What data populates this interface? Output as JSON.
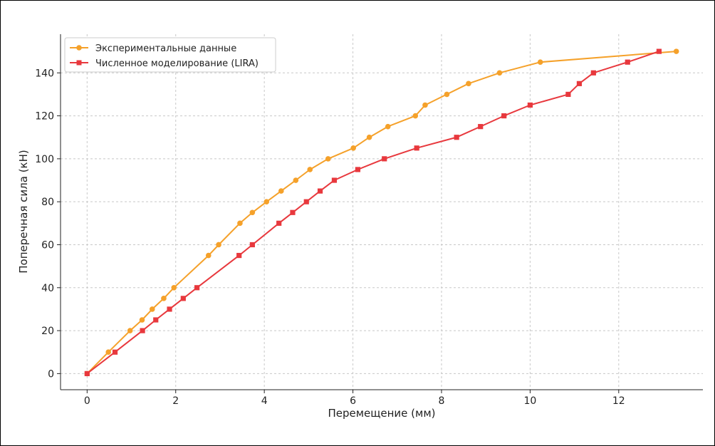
{
  "chart_data": {
    "type": "line",
    "title": "",
    "xlabel": "Перемещение (мм)",
    "ylabel": "Поперечная сила (кН)",
    "xlim": [
      -0.6,
      13.9
    ],
    "ylim": [
      -7.5,
      158
    ],
    "xticks": [
      0,
      2,
      4,
      6,
      8,
      10,
      12
    ],
    "yticks": [
      0,
      20,
      40,
      60,
      80,
      100,
      120,
      140
    ],
    "grid": true,
    "legend_position": "top-left",
    "series": [
      {
        "name": "Экспериментальные данные",
        "color": "#f5a12a",
        "marker": "circle",
        "x": [
          0,
          0.48,
          0.97,
          1.24,
          1.47,
          1.73,
          1.96,
          2.74,
          2.97,
          3.45,
          3.73,
          4.05,
          4.38,
          4.71,
          5.03,
          5.44,
          6.01,
          6.37,
          6.79,
          7.41,
          7.63,
          8.12,
          8.61,
          9.31,
          10.23,
          13.3
        ],
        "y": [
          0,
          10,
          20,
          25,
          30,
          35,
          40,
          55,
          60,
          70,
          75,
          80,
          85,
          90,
          95,
          100,
          105,
          110,
          115,
          120,
          125,
          130,
          135,
          140,
          145,
          150
        ]
      },
      {
        "name": "Численное моделирование (LIRA)",
        "color": "#e8383d",
        "marker": "square",
        "x": [
          0,
          0.63,
          1.25,
          1.55,
          1.86,
          2.17,
          2.48,
          3.43,
          3.73,
          4.33,
          4.64,
          4.95,
          5.26,
          5.58,
          6.11,
          6.71,
          7.44,
          8.34,
          8.88,
          9.41,
          10.0,
          10.86,
          11.11,
          11.43,
          12.2,
          12.91
        ],
        "y": [
          0,
          10,
          20,
          25,
          30,
          35,
          40,
          55,
          60,
          70,
          75,
          80,
          85,
          90,
          95,
          100,
          105,
          110,
          115,
          120,
          125,
          130,
          135,
          140,
          145,
          150
        ]
      }
    ]
  }
}
